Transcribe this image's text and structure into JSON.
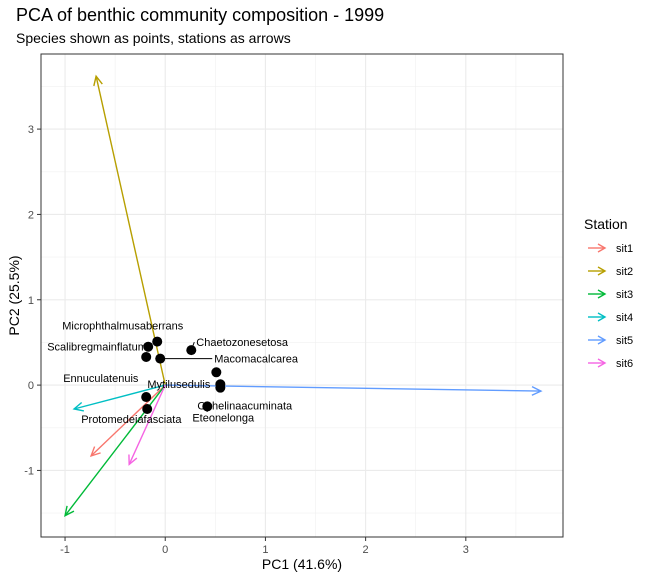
{
  "title": "PCA of benthic community composition - 1999",
  "subtitle": "Species shown as points, stations as arrows",
  "chart_data": {
    "type": "scatter",
    "title": "PCA of benthic community composition - 1999",
    "subtitle": "Species shown as points, stations as arrows",
    "xlabel": "PC1 (41.6%)",
    "ylabel": "PC2 (25.5%)",
    "xlim": [
      -1.24,
      3.97
    ],
    "ylim": [
      -1.78,
      3.88
    ],
    "xticks": [
      -1,
      0,
      1,
      2,
      3
    ],
    "yticks": [
      -1,
      0,
      1,
      2,
      3
    ],
    "grid": true,
    "legend": {
      "title": "Station",
      "placement": "right",
      "items": [
        {
          "name": "sit1",
          "color": "#F8766D"
        },
        {
          "name": "sit2",
          "color": "#B79F00"
        },
        {
          "name": "sit3",
          "color": "#00BA38"
        },
        {
          "name": "sit4",
          "color": "#00BFC4"
        },
        {
          "name": "sit5",
          "color": "#619CFF"
        },
        {
          "name": "sit6",
          "color": "#F564E3"
        }
      ]
    },
    "arrows": [
      {
        "name": "sit1",
        "x": -0.74,
        "y": -0.83
      },
      {
        "name": "sit2",
        "x": -0.69,
        "y": 3.62
      },
      {
        "name": "sit3",
        "x": -1.0,
        "y": -1.53
      },
      {
        "name": "sit4",
        "x": -0.91,
        "y": -0.28
      },
      {
        "name": "sit5",
        "x": 3.75,
        "y": -0.07
      },
      {
        "name": "sit6",
        "x": -0.36,
        "y": -0.93
      }
    ],
    "points": [
      {
        "label": "Microphthalmusaberrans",
        "x": -0.08,
        "y": 0.51
      },
      {
        "label": "Chaetozonesetosa",
        "x": 0.26,
        "y": 0.41
      },
      {
        "label": "Scalibregmainflatum",
        "x": -0.17,
        "y": 0.45
      },
      {
        "label": "Ennuculatenuis",
        "x": -0.19,
        "y": 0.33
      },
      {
        "label": "Macomacalcarea",
        "x": -0.05,
        "y": 0.31
      },
      {
        "label": "Ophelinaacuminata",
        "x": 0.51,
        "y": 0.15
      },
      {
        "label": "Mytilusedulis",
        "x": 0.55,
        "y": 0.01
      },
      {
        "label": "",
        "x": 0.55,
        "y": -0.03
      },
      {
        "label": "Protomedeiafasciata",
        "x": -0.19,
        "y": -0.14
      },
      {
        "label": "",
        "x": -0.18,
        "y": -0.28
      },
      {
        "label": "Eteonelonga",
        "x": 0.42,
        "y": -0.25
      }
    ]
  }
}
